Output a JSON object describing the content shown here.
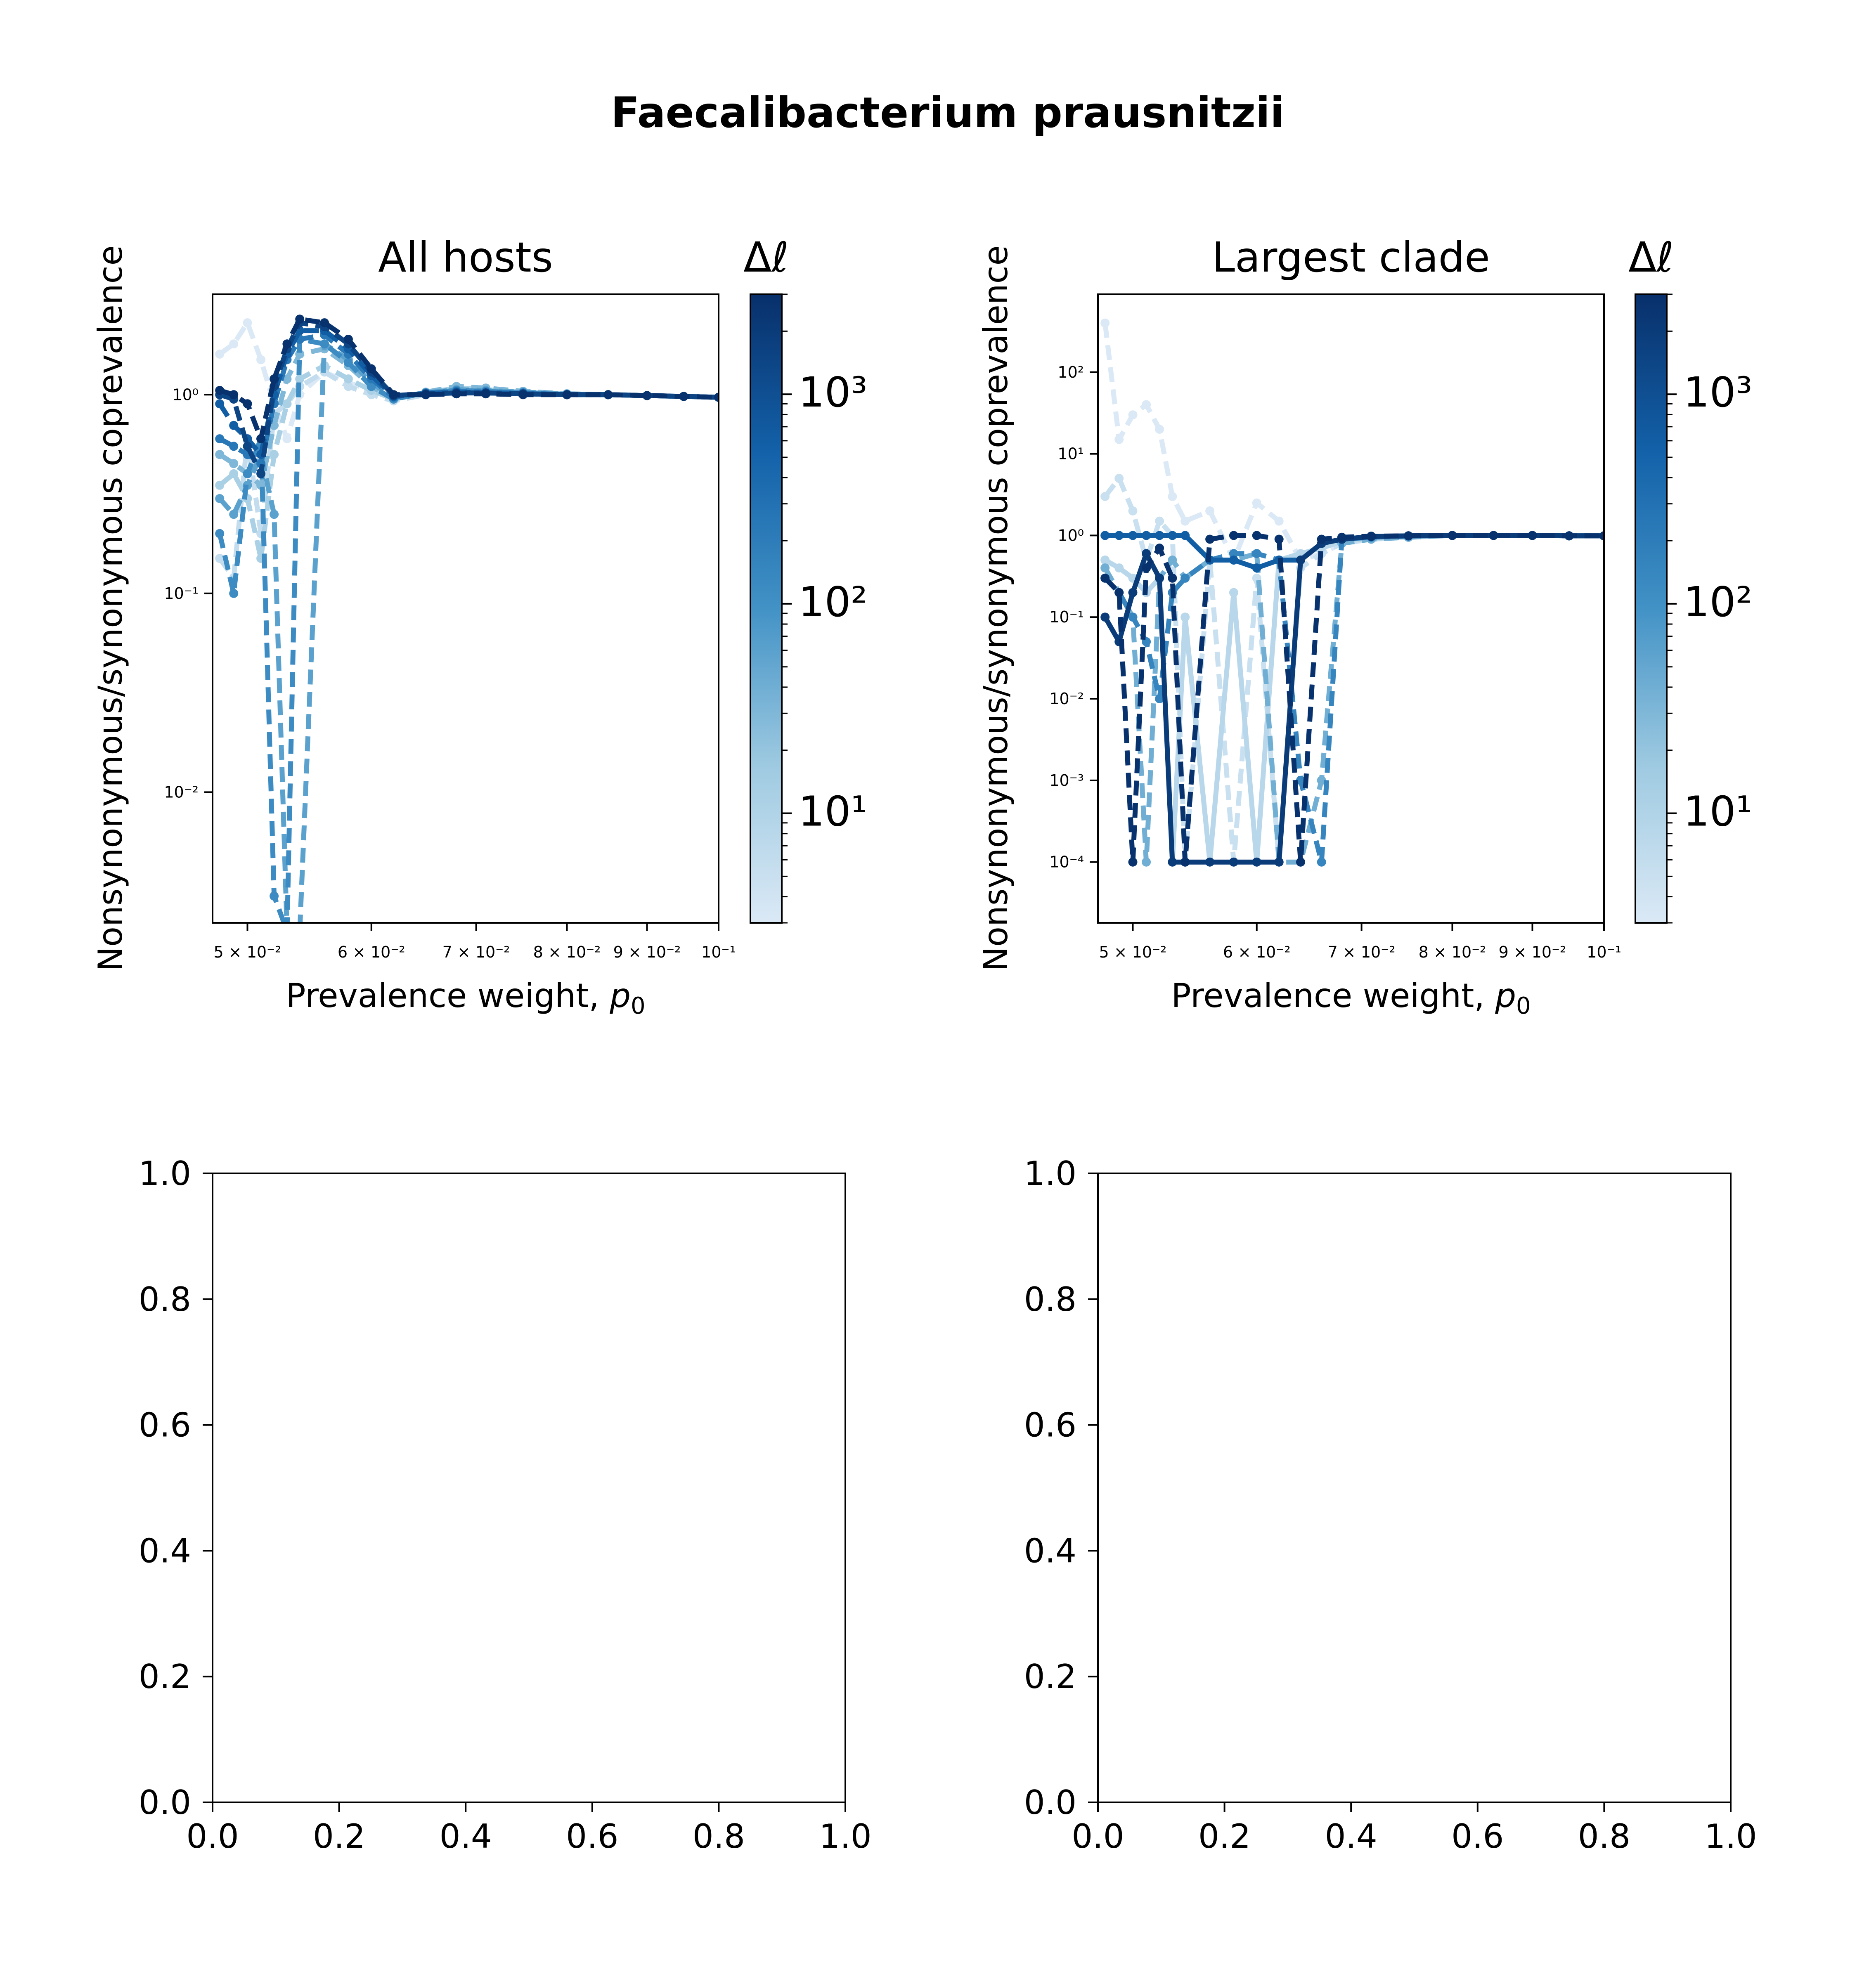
{
  "figure": {
    "suptitle": "Faecalibacterium prausnitzii"
  },
  "chart_data": [
    {
      "type": "line",
      "title": "All hosts",
      "xlabel": "Prevalence weight, p0",
      "ylabel": "Nonsynonymous/synonymous coprevalence",
      "xscale": "log",
      "yscale": "log",
      "xlim": [
        0.0475,
        0.1
      ],
      "ylim": [
        0.0022,
        3.2
      ],
      "x_ticks": [
        0.05,
        0.06,
        0.07,
        0.08,
        0.09,
        0.1
      ],
      "x_tick_labels": [
        "5 × 10⁻²",
        "6 × 10⁻²",
        "7 × 10⁻²",
        "8 × 10⁻²",
        "9 × 10⁻²",
        "10⁻¹"
      ],
      "y_ticks": [
        0.01,
        0.1,
        1
      ],
      "y_tick_labels": [
        "10⁻²",
        "10⁻¹",
        "10⁰"
      ],
      "grid": false,
      "colorbar": {
        "label": "Δℓ",
        "cmap": "Blues",
        "range": [
          3,
          3000
        ],
        "scale": "log",
        "ticks": [
          10,
          100,
          1000
        ],
        "tick_labels": [
          "10¹",
          "10²",
          "10³"
        ]
      },
      "series": [
        {
          "style": "dashed",
          "dl": 3,
          "x": [
            0.048,
            0.049,
            0.05,
            0.051,
            0.052,
            0.053,
            0.054,
            0.056,
            0.058,
            0.06,
            0.062,
            0.065,
            0.068,
            0.071,
            0.075,
            0.08,
            0.085,
            0.09,
            0.095,
            0.1
          ],
          "y": [
            1.6,
            1.8,
            2.3,
            1.5,
            0.9,
            0.6,
            1.0,
            1.3,
            1.15,
            1.05,
            0.95,
            1.02,
            1.05,
            1.04,
            1.02,
            1.0,
            1.0,
            0.99,
            0.98,
            0.97
          ]
        },
        {
          "style": "dashed",
          "dl": 6,
          "x": [
            0.048,
            0.049,
            0.05,
            0.051,
            0.052,
            0.053,
            0.054,
            0.056,
            0.058,
            0.06,
            0.062,
            0.065,
            0.068,
            0.071,
            0.075,
            0.08,
            0.085,
            0.09,
            0.095,
            0.1
          ],
          "y": [
            0.15,
            0.12,
            0.6,
            0.2,
            0.8,
            0.9,
            1.1,
            1.3,
            1.1,
            1.0,
            0.93,
            1.0,
            1.03,
            1.03,
            1.01,
            1.0,
            1.0,
            0.99,
            0.98,
            0.97
          ]
        },
        {
          "style": "dashed",
          "dl": 12,
          "x": [
            0.048,
            0.049,
            0.05,
            0.051,
            0.052,
            0.053,
            0.054,
            0.056,
            0.058,
            0.06,
            0.062,
            0.065,
            0.068,
            0.071,
            0.075,
            0.08,
            0.085,
            0.09,
            0.095,
            0.1
          ],
          "y": [
            0.35,
            0.4,
            0.3,
            0.15,
            0.5,
            0.9,
            1.2,
            1.4,
            1.2,
            1.05,
            0.95,
            1.02,
            1.08,
            1.06,
            1.03,
            1.01,
            1.0,
            0.99,
            0.98,
            0.97
          ]
        },
        {
          "style": "dashed",
          "dl": 30,
          "x": [
            0.048,
            0.049,
            0.05,
            0.051,
            0.052,
            0.053,
            0.054,
            0.056,
            0.058,
            0.06,
            0.062,
            0.065,
            0.068,
            0.071,
            0.075,
            0.08,
            0.085,
            0.09,
            0.095,
            0.1
          ],
          "y": [
            0.5,
            0.45,
            0.4,
            0.35,
            0.7,
            1.2,
            1.6,
            1.7,
            1.4,
            1.1,
            0.95,
            1.03,
            1.1,
            1.08,
            1.04,
            1.01,
            1.0,
            0.99,
            0.98,
            0.97
          ]
        },
        {
          "style": "dashed",
          "dl": 60,
          "x": [
            0.048,
            0.049,
            0.05,
            0.051,
            0.052,
            0.053,
            0.054,
            0.056,
            0.058,
            0.06,
            0.062,
            0.065,
            0.068,
            0.071,
            0.075,
            0.08,
            0.085,
            0.09,
            0.095,
            0.1
          ],
          "y": [
            0.3,
            0.25,
            0.35,
            0.5,
            0.25,
            0.002,
            0.002,
            1.8,
            1.5,
            1.15,
            0.96,
            1.02,
            1.06,
            1.05,
            1.03,
            1.01,
            1.0,
            0.99,
            0.98,
            0.97
          ]
        },
        {
          "style": "dashed",
          "dl": 120,
          "x": [
            0.048,
            0.049,
            0.05,
            0.051,
            0.052,
            0.053,
            0.054,
            0.056,
            0.058,
            0.06,
            0.062,
            0.065,
            0.068,
            0.071,
            0.075,
            0.08,
            0.085,
            0.09,
            0.095,
            0.1
          ],
          "y": [
            0.2,
            0.1,
            0.4,
            0.6,
            0.003,
            0.002,
            1.9,
            1.8,
            1.45,
            1.1,
            0.95,
            1.02,
            1.05,
            1.04,
            1.02,
            1.0,
            1.0,
            0.99,
            0.98,
            0.97
          ]
        },
        {
          "style": "dashed",
          "dl": 250,
          "x": [
            0.048,
            0.049,
            0.05,
            0.051,
            0.052,
            0.053,
            0.054,
            0.056,
            0.058,
            0.06,
            0.062,
            0.065,
            0.068,
            0.071,
            0.075,
            0.08,
            0.085,
            0.09,
            0.095,
            0.1
          ],
          "y": [
            0.6,
            0.55,
            0.5,
            0.45,
            0.9,
            1.5,
            1.9,
            2.0,
            1.6,
            1.2,
            0.97,
            1.02,
            1.04,
            1.03,
            1.02,
            1.0,
            1.0,
            0.99,
            0.98,
            0.97
          ]
        },
        {
          "style": "dashed",
          "dl": 600,
          "x": [
            0.048,
            0.049,
            0.05,
            0.051,
            0.052,
            0.053,
            0.054,
            0.056,
            0.058,
            0.06,
            0.062,
            0.065,
            0.068,
            0.071,
            0.075,
            0.08,
            0.085,
            0.09,
            0.095,
            0.1
          ],
          "y": [
            0.9,
            0.7,
            0.6,
            0.5,
            1.0,
            1.6,
            2.1,
            2.1,
            1.7,
            1.25,
            0.98,
            1.01,
            1.03,
            1.02,
            1.01,
            1.0,
            1.0,
            0.99,
            0.98,
            0.97
          ]
        },
        {
          "style": "dashed",
          "dl": 1500,
          "x": [
            0.048,
            0.049,
            0.05,
            0.051,
            0.052,
            0.053,
            0.054,
            0.056,
            0.058,
            0.06,
            0.062,
            0.065,
            0.068,
            0.071,
            0.075,
            0.08,
            0.085,
            0.09,
            0.095,
            0.1
          ],
          "y": [
            1.0,
            0.95,
            0.55,
            0.4,
            1.1,
            1.7,
            2.3,
            2.2,
            1.8,
            1.3,
            0.99,
            1.01,
            1.02,
            1.02,
            1.01,
            1.0,
            1.0,
            0.99,
            0.98,
            0.97
          ]
        },
        {
          "style": "dashed",
          "dl": 2800,
          "x": [
            0.048,
            0.049,
            0.05,
            0.051,
            0.052,
            0.053,
            0.054,
            0.056,
            0.058,
            0.06,
            0.062,
            0.065,
            0.068,
            0.071,
            0.075,
            0.08,
            0.085,
            0.09,
            0.095,
            0.1
          ],
          "y": [
            1.05,
            1.0,
            0.9,
            0.6,
            1.2,
            1.8,
            2.4,
            2.3,
            1.9,
            1.35,
            1.0,
            1.0,
            1.01,
            1.01,
            1.0,
            1.0,
            1.0,
            0.99,
            0.98,
            0.97
          ]
        }
      ]
    },
    {
      "type": "line",
      "title": "Largest clade",
      "xlabel": "Prevalence weight, p0",
      "ylabel": "Nonsynonymous/synonymous coprevalence",
      "xscale": "log",
      "yscale": "log",
      "xlim": [
        0.0475,
        0.1
      ],
      "ylim": [
        1.8e-05,
        900
      ],
      "x_ticks": [
        0.05,
        0.06,
        0.07,
        0.08,
        0.09,
        0.1
      ],
      "x_tick_labels": [
        "5 × 10⁻²",
        "6 × 10⁻²",
        "7 × 10⁻²",
        "8 × 10⁻²",
        "9 × 10⁻²",
        "10⁻¹"
      ],
      "y_ticks": [
        0.0001,
        0.001,
        0.01,
        0.1,
        1,
        10,
        100
      ],
      "y_tick_labels": [
        "10⁻⁴",
        "10⁻³",
        "10⁻²",
        "10⁻¹",
        "10⁰",
        "10¹",
        "10²"
      ],
      "grid": false,
      "colorbar": {
        "label": "Δℓ",
        "cmap": "Blues",
        "range": [
          3,
          3000
        ],
        "scale": "log",
        "ticks": [
          10,
          100,
          1000
        ],
        "tick_labels": [
          "10¹",
          "10²",
          "10³"
        ]
      },
      "series": [
        {
          "style": "dashed",
          "dl": 3,
          "x": [
            0.048,
            0.049,
            0.05,
            0.051,
            0.052,
            0.053,
            0.054,
            0.056,
            0.058,
            0.06,
            0.062,
            0.064,
            0.066,
            0.068,
            0.071,
            0.075,
            0.08,
            0.085,
            0.09,
            0.095,
            0.1
          ],
          "y": [
            400,
            15,
            30,
            40,
            20,
            3,
            1.5,
            2,
            0.5,
            2.5,
            1.5,
            0.5,
            0.6,
            0.8,
            0.9,
            0.95,
            1.0,
            1.0,
            1.0,
            0.99,
            0.99
          ]
        },
        {
          "style": "dashed",
          "dl": 5,
          "x": [
            0.048,
            0.049,
            0.05,
            0.051,
            0.052,
            0.053,
            0.054,
            0.056,
            0.058,
            0.06,
            0.062,
            0.064,
            0.066,
            0.068,
            0.071,
            0.075,
            0.08,
            0.085,
            0.09,
            0.095,
            0.1
          ],
          "y": [
            3,
            5,
            2,
            0.5,
            1.5,
            1,
            0.0001,
            0.5,
            0.0001,
            0.3,
            0.0001,
            0.4,
            0.6,
            0.8,
            0.9,
            0.95,
            1.0,
            1.0,
            1.0,
            0.99,
            0.99
          ]
        },
        {
          "style": "solid",
          "dl": 8,
          "x": [
            0.048,
            0.049,
            0.05,
            0.051,
            0.052,
            0.053,
            0.054,
            0.056,
            0.058,
            0.06,
            0.062,
            0.064,
            0.066,
            0.068,
            0.071,
            0.075,
            0.08,
            0.085,
            0.09,
            0.095,
            0.1
          ],
          "y": [
            0.5,
            0.4,
            0.3,
            0.2,
            0.3,
            0.0001,
            0.1,
            0.0001,
            0.2,
            0.0001,
            0.5,
            0.6,
            0.7,
            0.85,
            0.92,
            0.96,
            1.0,
            1.0,
            1.0,
            0.99,
            0.99
          ]
        },
        {
          "style": "dashed",
          "dl": 40,
          "x": [
            0.048,
            0.049,
            0.05,
            0.051,
            0.052,
            0.053,
            0.054,
            0.056,
            0.058,
            0.06,
            0.062,
            0.064,
            0.066,
            0.068,
            0.071,
            0.075,
            0.08,
            0.085,
            0.09,
            0.095,
            0.1
          ],
          "y": [
            0.4,
            0.2,
            0.1,
            0.0001,
            0.3,
            0.5,
            0.3,
            0.5,
            0.5,
            0.6,
            0.0001,
            0.0001,
            0.001,
            0.8,
            0.9,
            0.95,
            1.0,
            1.0,
            1.0,
            0.99,
            0.99
          ]
        },
        {
          "style": "dashed",
          "dl": 150,
          "x": [
            0.048,
            0.049,
            0.05,
            0.051,
            0.052,
            0.053,
            0.054,
            0.056,
            0.058,
            0.06,
            0.062,
            0.064,
            0.066,
            0.068,
            0.071,
            0.075,
            0.08,
            0.085,
            0.09,
            0.095,
            0.1
          ],
          "y": [
            0.3,
            0.2,
            0.1,
            0.05,
            0.01,
            0.2,
            0.3,
            0.5,
            0.6,
            0.6,
            0.5,
            0.001,
            0.0001,
            0.9,
            0.95,
            0.98,
            1.0,
            1.0,
            1.0,
            0.99,
            0.99
          ]
        },
        {
          "style": "solid",
          "dl": 600,
          "x": [
            0.048,
            0.049,
            0.05,
            0.051,
            0.052,
            0.053,
            0.054,
            0.056,
            0.058,
            0.06,
            0.062,
            0.064,
            0.066,
            0.068,
            0.071,
            0.075,
            0.08,
            0.085,
            0.09,
            0.095,
            0.1
          ],
          "y": [
            1.0,
            1.0,
            1.0,
            1.0,
            1.0,
            1.0,
            1.0,
            0.5,
            0.5,
            0.4,
            0.5,
            0.5,
            0.8,
            0.9,
            0.97,
            0.99,
            1.0,
            1.0,
            1.0,
            0.99,
            0.99
          ]
        },
        {
          "style": "solid",
          "dl": 2000,
          "x": [
            0.048,
            0.049,
            0.05,
            0.051,
            0.052,
            0.053,
            0.054,
            0.056,
            0.058,
            0.06,
            0.062,
            0.064,
            0.066,
            0.068,
            0.071,
            0.075,
            0.08,
            0.085,
            0.09,
            0.095,
            0.1
          ],
          "y": [
            0.1,
            0.05,
            0.2,
            0.6,
            0.3,
            0.0001,
            0.0001,
            0.0001,
            0.0001,
            0.0001,
            0.0001,
            0.5,
            0.8,
            0.9,
            0.97,
            0.99,
            1.0,
            1.0,
            1.0,
            0.99,
            0.99
          ]
        },
        {
          "style": "dashed",
          "dl": 2800,
          "x": [
            0.048,
            0.049,
            0.05,
            0.051,
            0.052,
            0.053,
            0.054,
            0.056,
            0.058,
            0.06,
            0.062,
            0.064,
            0.066,
            0.068,
            0.071,
            0.075,
            0.08,
            0.085,
            0.09,
            0.095,
            0.1
          ],
          "y": [
            0.3,
            0.2,
            0.0001,
            0.4,
            0.7,
            0.3,
            0.0001,
            0.9,
            1.0,
            1.0,
            0.9,
            0.0001,
            0.9,
            0.95,
            0.98,
            0.99,
            1.0,
            1.0,
            1.0,
            0.99,
            0.99
          ]
        }
      ]
    },
    {
      "type": "line",
      "title": "",
      "xlim": [
        0,
        1
      ],
      "ylim": [
        0,
        1
      ],
      "x_ticks": [
        0,
        0.2,
        0.4,
        0.6,
        0.8,
        1.0
      ],
      "x_tick_labels": [
        "0.0",
        "0.2",
        "0.4",
        "0.6",
        "0.8",
        "1.0"
      ],
      "y_ticks": [
        0,
        0.2,
        0.4,
        0.6,
        0.8,
        1.0
      ],
      "y_tick_labels": [
        "0.0",
        "0.2",
        "0.4",
        "0.6",
        "0.8",
        "1.0"
      ],
      "series": []
    },
    {
      "type": "line",
      "title": "",
      "xlim": [
        0,
        1
      ],
      "ylim": [
        0,
        1
      ],
      "x_ticks": [
        0,
        0.2,
        0.4,
        0.6,
        0.8,
        1.0
      ],
      "x_tick_labels": [
        "0.0",
        "0.2",
        "0.4",
        "0.6",
        "0.8",
        "1.0"
      ],
      "y_ticks": [
        0,
        0.2,
        0.4,
        0.6,
        0.8,
        1.0
      ],
      "y_tick_labels": [
        "0.0",
        "0.2",
        "0.4",
        "0.6",
        "0.8",
        "1.0"
      ],
      "series": []
    }
  ]
}
